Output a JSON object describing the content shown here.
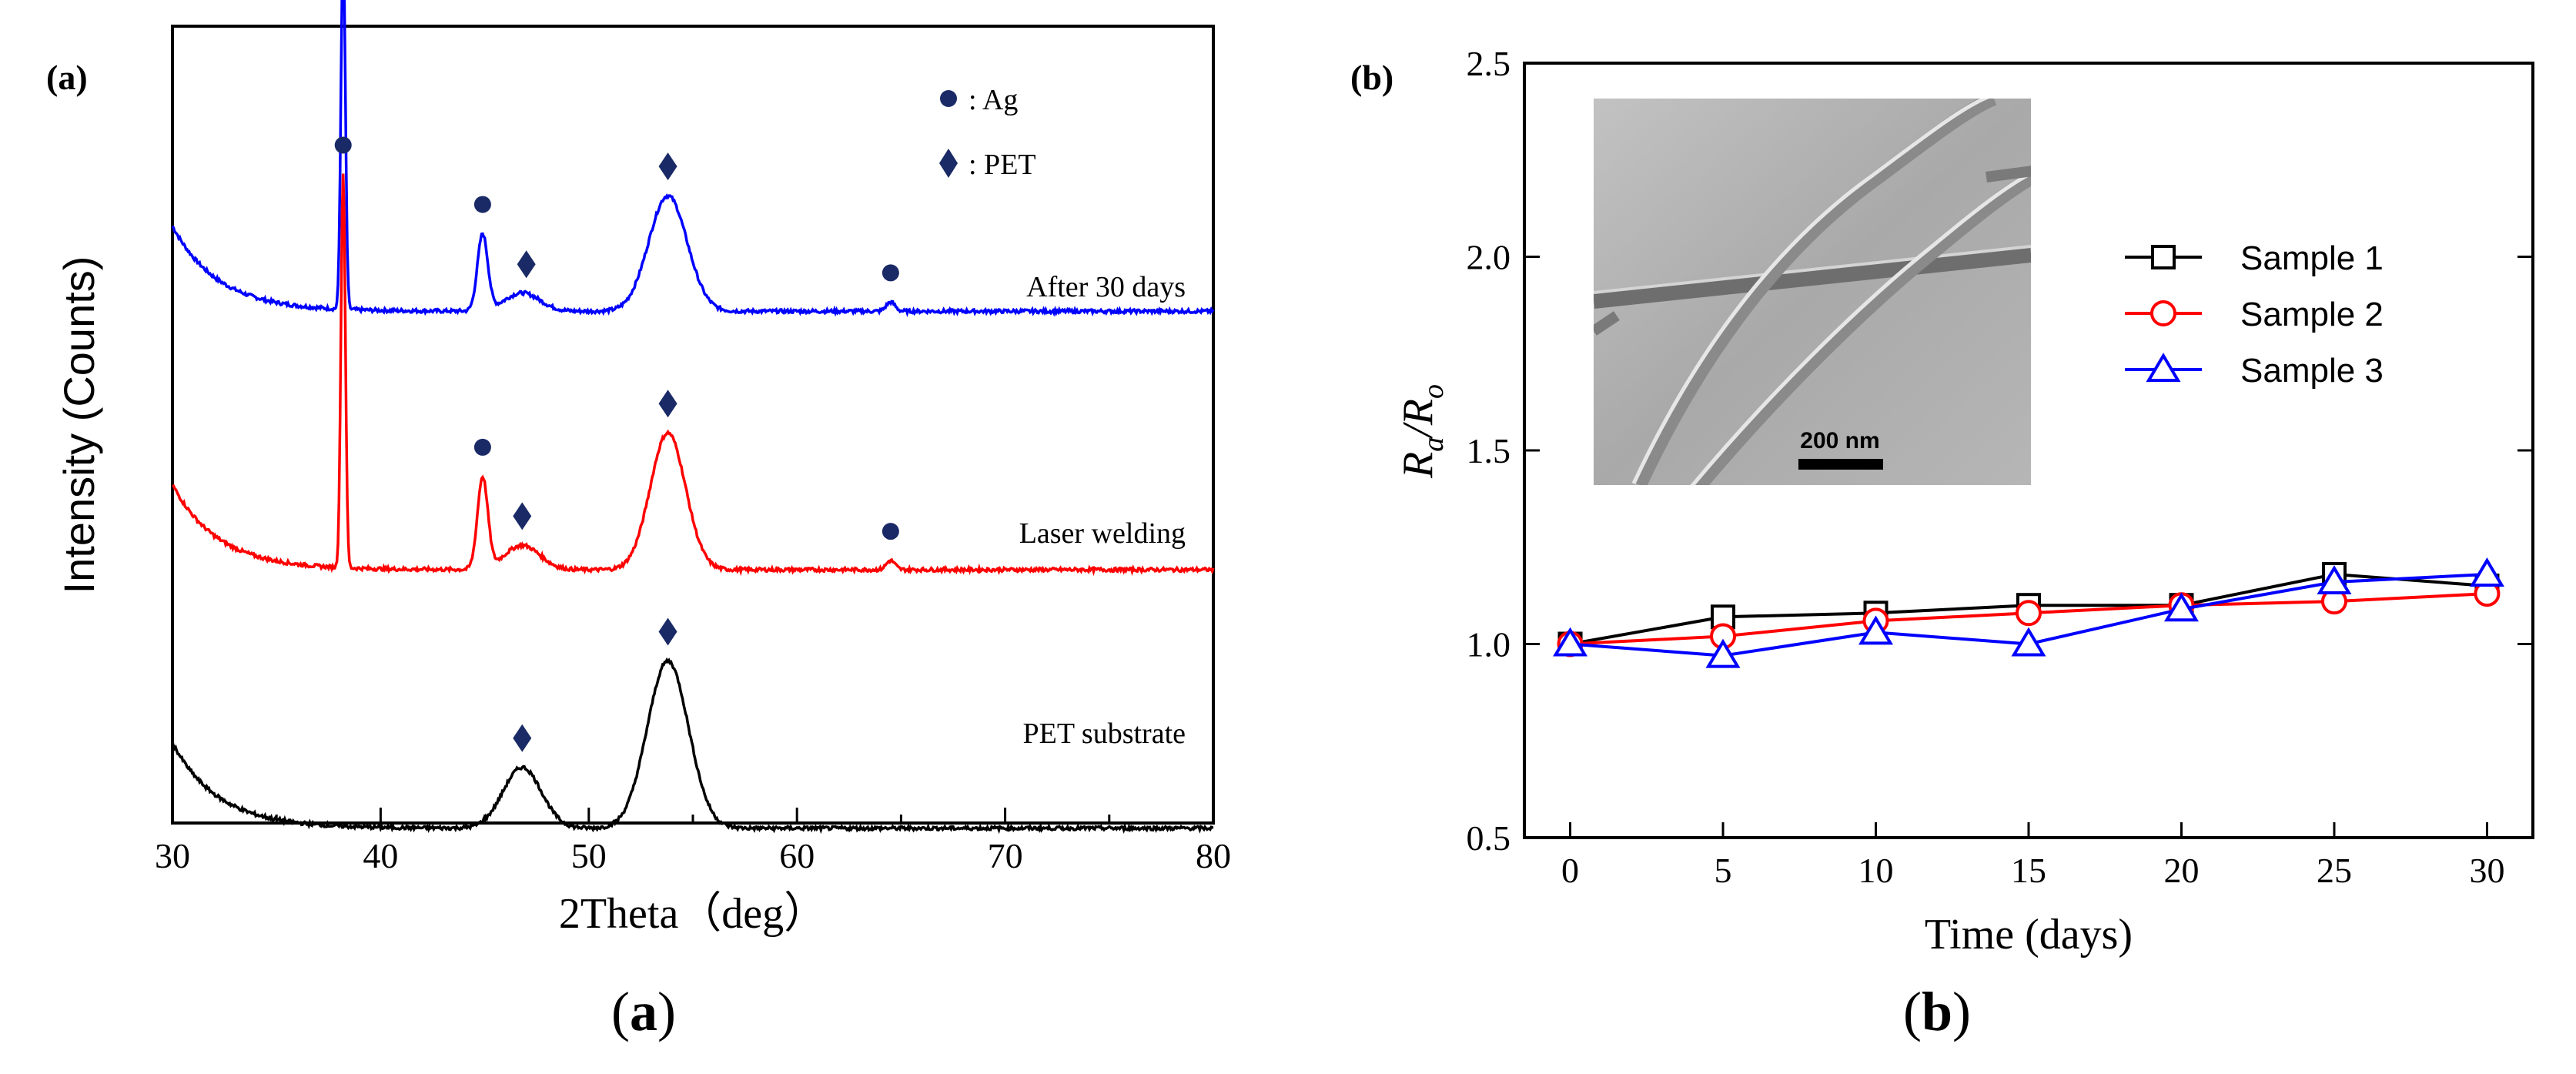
{
  "chart_data": [
    {
      "type": "line",
      "panel": "(a)",
      "caption_label": "a",
      "xlabel": "2Theta（deg）",
      "ylabel": "Intensity (Counts)",
      "xlim": [
        30,
        80
      ],
      "xticks": [
        30,
        40,
        50,
        60,
        70,
        80
      ],
      "series": [
        {
          "name": "After 30 days",
          "color": "#0000ff",
          "baseline": 0.85,
          "peaks": [
            {
              "x": 38.2,
              "h": 1.2,
              "w": 0.15
            },
            {
              "x": 44.9,
              "h": 0.25,
              "w": 0.35
            },
            {
              "x": 46.8,
              "h": 0.06,
              "w": 1.2
            },
            {
              "x": 53.8,
              "h": 0.38,
              "w": 1.3
            },
            {
              "x": 64.5,
              "h": 0.03,
              "w": 0.3
            }
          ],
          "markers": [
            {
              "x": 38.2,
              "kind": "Ag"
            },
            {
              "x": 44.9,
              "kind": "Ag"
            },
            {
              "x": 47.0,
              "kind": "PET"
            },
            {
              "x": 53.8,
              "kind": "PET"
            },
            {
              "x": 64.5,
              "kind": "Ag"
            }
          ]
        },
        {
          "name": "Laser welding",
          "color": "#ff0000",
          "baseline": 0.0,
          "peaks": [
            {
              "x": 38.2,
              "h": 1.3,
              "w": 0.15
            },
            {
              "x": 44.9,
              "h": 0.3,
              "w": 0.35
            },
            {
              "x": 46.8,
              "h": 0.08,
              "w": 1.2
            },
            {
              "x": 53.8,
              "h": 0.45,
              "w": 1.2
            },
            {
              "x": 64.5,
              "h": 0.03,
              "w": 0.3
            }
          ],
          "markers": [
            {
              "x": 38.2,
              "kind": "Ag"
            },
            {
              "x": 44.9,
              "kind": "Ag"
            },
            {
              "x": 46.8,
              "kind": "PET"
            },
            {
              "x": 53.8,
              "kind": "PET"
            },
            {
              "x": 64.5,
              "kind": "Ag"
            }
          ]
        },
        {
          "name": "PET substrate",
          "color": "#000000",
          "baseline": -0.85,
          "peaks": [
            {
              "x": 46.8,
              "h": 0.2,
              "w": 1.3
            },
            {
              "x": 53.8,
              "h": 0.55,
              "w": 1.4
            }
          ],
          "markers": [
            {
              "x": 46.8,
              "kind": "PET"
            },
            {
              "x": 53.8,
              "kind": "PET"
            }
          ]
        }
      ],
      "legend": [
        {
          "symbol": "circle",
          "label": ": Ag"
        },
        {
          "symbol": "diamond",
          "label": ": PET"
        }
      ]
    },
    {
      "type": "line",
      "panel": "(b)",
      "caption_label": "b",
      "xlabel": "Time (days)",
      "ylabel_main": "R",
      "ylabel_sub1": "a",
      "ylabel_slash": "/",
      "ylabel_sub2": "o",
      "xlim": [
        -1.5,
        31.5
      ],
      "ylim": [
        0.5,
        2.5
      ],
      "xticks": [
        0,
        5,
        10,
        15,
        20,
        25,
        30
      ],
      "yticks": [
        "0.5",
        "1.0",
        "1.5",
        "2.0",
        "2.5"
      ],
      "x": [
        0,
        5,
        10,
        15,
        20,
        25,
        30
      ],
      "series": [
        {
          "name": "Sample 1",
          "color": "#000000",
          "marker": "square",
          "values": [
            1.0,
            1.07,
            1.08,
            1.1,
            1.1,
            1.18,
            1.15
          ]
        },
        {
          "name": "Sample 2",
          "color": "#ff0000",
          "marker": "circle",
          "values": [
            1.0,
            1.02,
            1.06,
            1.08,
            1.1,
            1.11,
            1.13
          ]
        },
        {
          "name": "Sample 3",
          "color": "#0000ff",
          "marker": "triangle",
          "values": [
            1.0,
            0.97,
            1.03,
            1.0,
            1.09,
            1.16,
            1.18
          ]
        }
      ],
      "inset_scale_label": "200 nm"
    }
  ]
}
